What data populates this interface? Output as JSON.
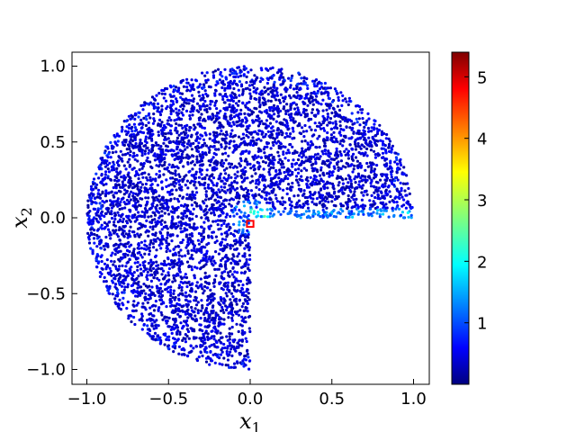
{
  "chart_data": {
    "type": "scatter",
    "title": "",
    "xlabel": "x",
    "xlabel_sub": "1",
    "ylabel": "x",
    "ylabel_sub": "2",
    "xlim": [
      -1.1,
      1.1
    ],
    "ylim": [
      -1.1,
      1.1
    ],
    "x_ticks": [
      -1.0,
      -0.5,
      0.0,
      0.5,
      1.0
    ],
    "x_tick_labels": [
      "−1.0",
      "−0.5",
      "0.0",
      "0.5",
      "1.0"
    ],
    "y_ticks": [
      -1.0,
      -0.5,
      0.0,
      0.5,
      1.0
    ],
    "y_tick_labels": [
      "−1.0",
      "−0.5",
      "0.0",
      "0.5",
      "1.0"
    ],
    "grid": false,
    "domain": "unit disk (radius 1.0) with the lower-right quadrant (x1 > 0, x2 < 0) removed",
    "colormap": "jet",
    "color_range": [
      0.0,
      5.4
    ],
    "colorbar_ticks": [
      1,
      2,
      3,
      4,
      5
    ],
    "colorbar_tick_labels": [
      "1",
      "2",
      "3",
      "4",
      "5"
    ],
    "value_summary": "most points have color value about 0.1 to 1.0; near the re-entrant corner and along the edge x2 = 0, x1 in [0, 1] values rise to about 1.2 to 1.8",
    "highlighted_region": {
      "x": [
        -0.02,
        0.02
      ],
      "y": [
        -0.06,
        -0.02
      ],
      "color": "#ff0000"
    }
  }
}
